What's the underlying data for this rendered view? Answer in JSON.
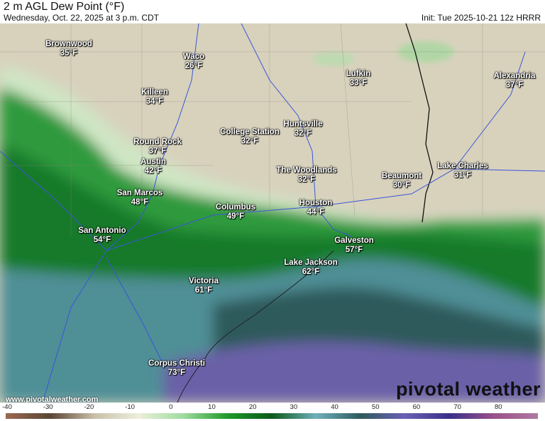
{
  "header": {
    "title": "2 m AGL Dew Point (°F)",
    "valid_time": "Wednesday, Oct. 22, 2025 at 3 p.m. CDT",
    "init": "Init: Tue 2025-10-21 12z HRRR"
  },
  "cities": [
    {
      "name": "Brownwood",
      "value": "35°F"
    },
    {
      "name": "Waco",
      "value": "26°F"
    },
    {
      "name": "Killeen",
      "value": "34°F"
    },
    {
      "name": "Round Rock",
      "value": "37°F"
    },
    {
      "name": "Austin",
      "value": "42°F"
    },
    {
      "name": "San Marcos",
      "value": "48°F"
    },
    {
      "name": "San Antonio",
      "value": "54°F"
    },
    {
      "name": "College Station",
      "value": "32°F"
    },
    {
      "name": "Huntsville",
      "value": "32°F"
    },
    {
      "name": "Lufkin",
      "value": "33°F"
    },
    {
      "name": "Alexandria",
      "value": "37°F"
    },
    {
      "name": "The Woodlands",
      "value": "32°F"
    },
    {
      "name": "Beaumont",
      "value": "30°F"
    },
    {
      "name": "Lake Charles",
      "value": "31°F"
    },
    {
      "name": "Columbus",
      "value": "49°F"
    },
    {
      "name": "Houston",
      "value": "44°F"
    },
    {
      "name": "Galveston",
      "value": "57°F"
    },
    {
      "name": "Lake Jackson",
      "value": "62°F"
    },
    {
      "name": "Victoria",
      "value": "61°F"
    },
    {
      "name": "Corpus Christi",
      "value": "73°F"
    }
  ],
  "footer": {
    "url": "www.pivotalweather.com",
    "logo": "pivotal weather"
  },
  "colorbar": {
    "ticks": [
      "-40",
      "-30",
      "-20",
      "-10",
      "0",
      "10",
      "20",
      "30",
      "40",
      "50",
      "60",
      "70",
      "80"
    ],
    "range": [
      -40,
      90
    ],
    "colors": [
      "#9b6a4e",
      "#5a4536",
      "#c9c0a8",
      "#eeeedd",
      "#9fdc9f",
      "#1f9a2a",
      "#0c5a1a",
      "#6fb0bd",
      "#2f5a5c",
      "#6a60b5",
      "#3a2f8a",
      "#9a4f8a",
      "#b07aa0"
    ]
  }
}
